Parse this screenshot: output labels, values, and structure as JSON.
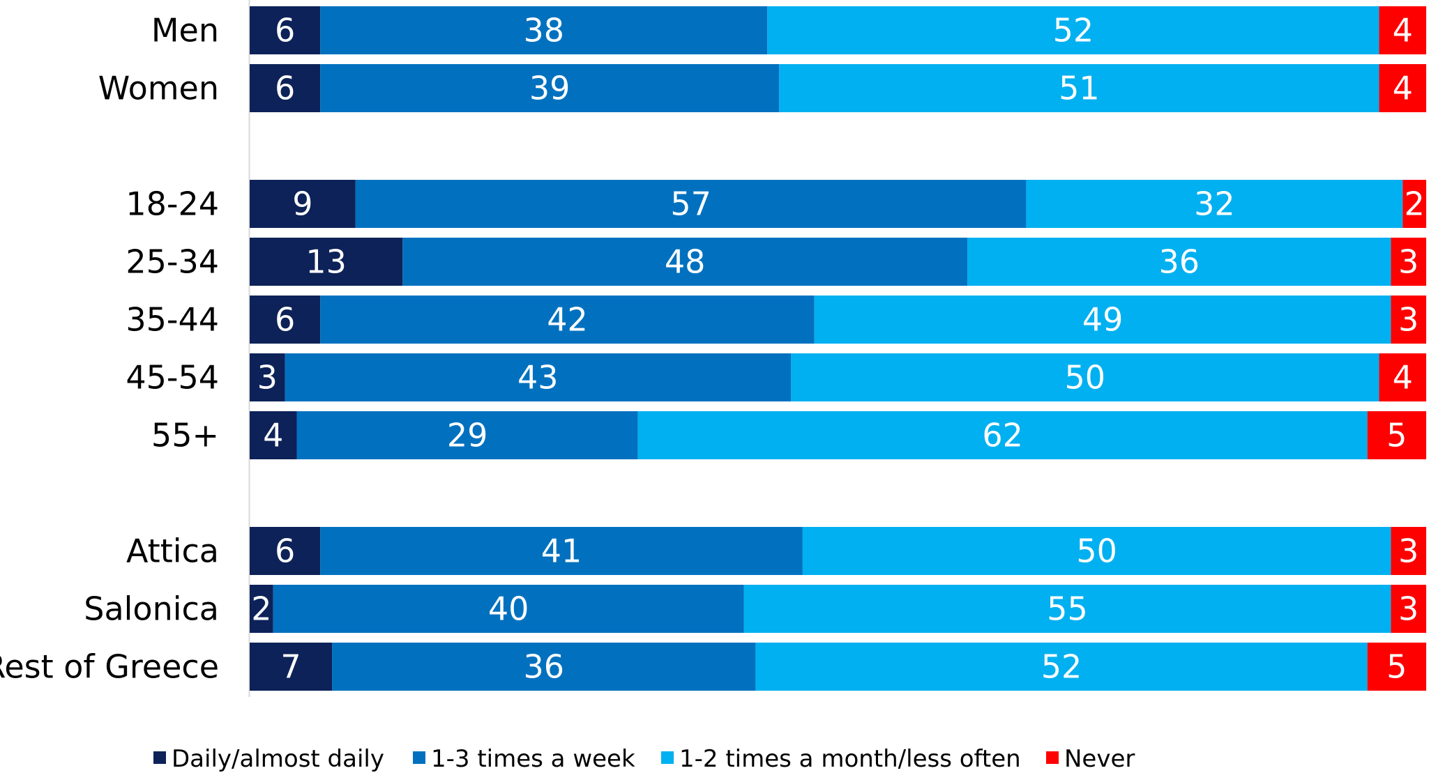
{
  "chart_data": {
    "type": "bar",
    "orientation": "horizontal",
    "stacked": true,
    "percent": true,
    "title": "",
    "xlabel": "",
    "ylabel": "",
    "xlim": [
      0,
      100
    ],
    "grid": false,
    "legend_position": "bottom",
    "categories": [
      "Men",
      "Women",
      "18-24",
      "25-34",
      "35-44",
      "45-54",
      "55+",
      "Attica",
      "Salonica",
      "Rest of Greece"
    ],
    "groups": [
      [
        "Men",
        "Women"
      ],
      [
        "18-24",
        "25-34",
        "35-44",
        "45-54",
        "55+"
      ],
      [
        "Attica",
        "Salonica",
        "Rest of Greece"
      ]
    ],
    "series": [
      {
        "name": "Daily/almost daily",
        "color": "#0d2258",
        "values": [
          6,
          6,
          9,
          13,
          6,
          3,
          4,
          6,
          2,
          7
        ]
      },
      {
        "name": "1-3 times a week",
        "color": "#0171bf",
        "values": [
          38,
          39,
          57,
          48,
          42,
          43,
          29,
          41,
          40,
          36
        ]
      },
      {
        "name": "1-2 times a month/less often",
        "color": "#00b0f0",
        "values": [
          52,
          51,
          32,
          36,
          49,
          50,
          62,
          50,
          55,
          52
        ]
      },
      {
        "name": "Never",
        "color": "#ff0000",
        "values": [
          4,
          4,
          2,
          3,
          3,
          4,
          5,
          3,
          3,
          5
        ]
      }
    ]
  }
}
